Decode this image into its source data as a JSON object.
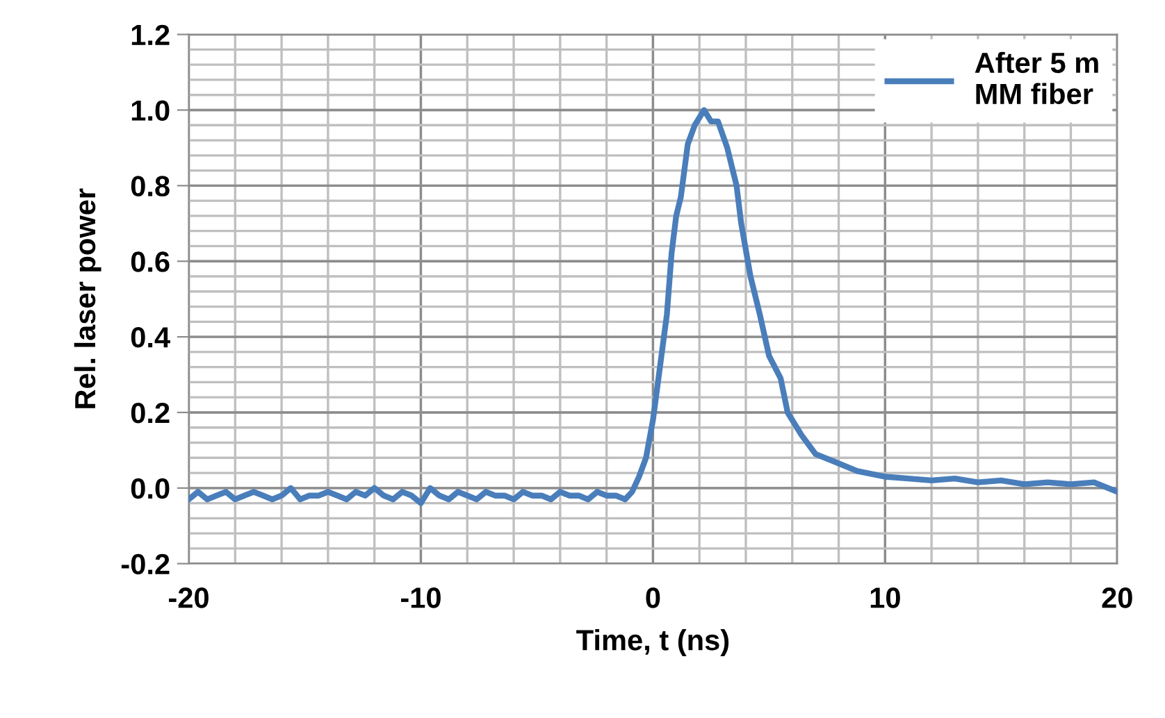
{
  "chart_data": {
    "type": "line",
    "xlabel": "Time, t (ns)",
    "ylabel": "Rel. laser power",
    "xlim": [
      -20,
      20
    ],
    "xticks": [
      -20,
      -10,
      0,
      10,
      20
    ],
    "ylim": [
      -0.2,
      1.2
    ],
    "yticks": [
      {
        "value": -0.2,
        "label": "-0.2"
      },
      {
        "value": 0,
        "label": "0.0"
      },
      {
        "value": 0.2,
        "label": "0.2"
      },
      {
        "value": 0.4,
        "label": "0.4"
      },
      {
        "value": 0.6,
        "label": "0.6"
      },
      {
        "value": 0.8,
        "label": "0.8"
      },
      {
        "value": 1.0,
        "label": "1.0"
      },
      {
        "value": 1.2,
        "label": "1.2"
      }
    ],
    "grid": true,
    "legend": "top right",
    "line_style": "solid",
    "marker": "none",
    "series": [
      {
        "name": "After 5 m\nMM fiber",
        "color": "#4a7ebb",
        "x": [
          -20,
          -19.6,
          -19.2,
          -18.8,
          -18.4,
          -18,
          -17.6,
          -17.2,
          -16.8,
          -16.4,
          -16,
          -15.6,
          -15.2,
          -14.8,
          -14.4,
          -14,
          -13.6,
          -13.2,
          -12.8,
          -12.4,
          -12,
          -11.6,
          -11.2,
          -10.8,
          -10.4,
          -10,
          -9.6,
          -9.2,
          -8.8,
          -8.4,
          -8,
          -7.6,
          -7.2,
          -6.8,
          -6.4,
          -6,
          -5.6,
          -5.2,
          -4.8,
          -4.4,
          -4,
          -3.6,
          -3.2,
          -2.8,
          -2.4,
          -2,
          -1.6,
          -1.2,
          -0.9,
          -0.6,
          -0.3,
          0,
          0.3,
          0.6,
          0.8,
          1.0,
          1.2,
          1.5,
          1.8,
          2.2,
          2.5,
          2.8,
          3.2,
          3.6,
          3.8,
          4.2,
          4.6,
          5.0,
          5.5,
          5.8,
          6.4,
          7.0,
          7.8,
          8.8,
          10,
          11,
          12,
          13,
          14,
          15,
          16,
          17,
          18,
          19,
          20
        ],
        "values": [
          -0.03,
          -0.01,
          -0.03,
          -0.02,
          -0.01,
          -0.03,
          -0.02,
          -0.01,
          -0.02,
          -0.03,
          -0.02,
          0.0,
          -0.03,
          -0.02,
          -0.02,
          -0.01,
          -0.02,
          -0.03,
          -0.01,
          -0.02,
          0.0,
          -0.02,
          -0.03,
          -0.01,
          -0.02,
          -0.04,
          0.0,
          -0.02,
          -0.03,
          -0.01,
          -0.02,
          -0.03,
          -0.01,
          -0.02,
          -0.02,
          -0.03,
          -0.01,
          -0.02,
          -0.02,
          -0.03,
          -0.01,
          -0.02,
          -0.02,
          -0.03,
          -0.01,
          -0.02,
          -0.02,
          -0.03,
          -0.01,
          0.03,
          0.08,
          0.18,
          0.32,
          0.46,
          0.62,
          0.72,
          0.77,
          0.91,
          0.96,
          1.0,
          0.97,
          0.97,
          0.9,
          0.8,
          0.7,
          0.56,
          0.46,
          0.35,
          0.29,
          0.2,
          0.14,
          0.09,
          0.07,
          0.045,
          0.03,
          0.025,
          0.02,
          0.025,
          0.015,
          0.02,
          0.01,
          0.015,
          0.01,
          0.015,
          -0.01
        ]
      }
    ]
  }
}
